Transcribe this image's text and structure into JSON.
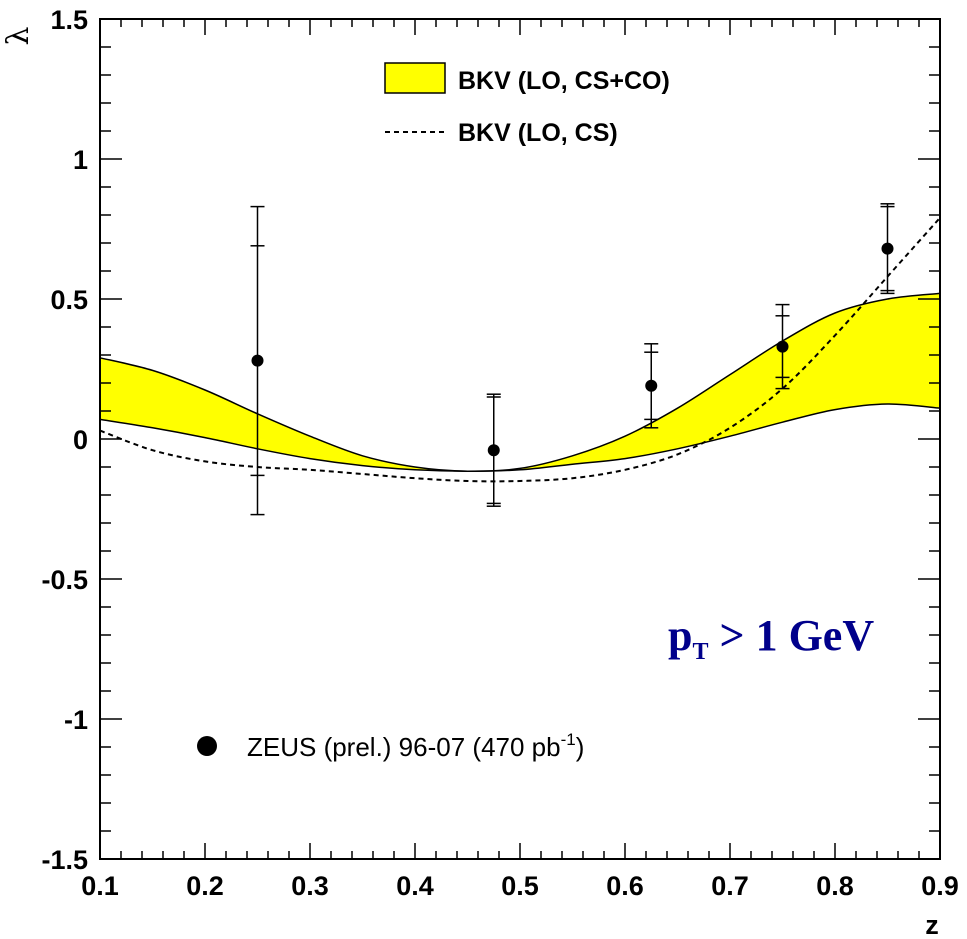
{
  "chart_data": {
    "type": "scatter",
    "title": "",
    "xlabel": "z",
    "ylabel": "λ",
    "xlim": [
      0.1,
      0.9
    ],
    "ylim": [
      -1.5,
      1.5
    ],
    "xticks": [
      "0.1",
      "0.2",
      "0.3",
      "0.4",
      "0.5",
      "0.6",
      "0.7",
      "0.8",
      "0.9"
    ],
    "yticks": [
      "-1.5",
      "-1",
      "-0.5",
      "0",
      "0.5",
      "1",
      "1.5"
    ],
    "grid": false,
    "legend_placement": "top-right",
    "annotation": "p",
    "annotation_sub": "T",
    "annotation_rest": " > 1 GeV",
    "annotation_color": "#00008b",
    "band_color": "#ffff00",
    "series": [
      {
        "name": "BKV (LO, CS+CO)",
        "kind": "band",
        "x": [
          0.1,
          0.15,
          0.2,
          0.25,
          0.3,
          0.35,
          0.4,
          0.45,
          0.5,
          0.55,
          0.6,
          0.65,
          0.7,
          0.75,
          0.8,
          0.85,
          0.9
        ],
        "y_upper": [
          0.29,
          0.245,
          0.175,
          0.09,
          0.01,
          -0.06,
          -0.1,
          -0.115,
          -0.105,
          -0.06,
          0.01,
          0.11,
          0.23,
          0.35,
          0.45,
          0.5,
          0.52
        ],
        "y_lower": [
          0.07,
          0.04,
          0.005,
          -0.035,
          -0.07,
          -0.095,
          -0.11,
          -0.115,
          -0.11,
          -0.09,
          -0.07,
          -0.035,
          0.01,
          0.06,
          0.105,
          0.125,
          0.11
        ]
      },
      {
        "name": "BKV (LO, CS)",
        "kind": "dashed-line",
        "x": [
          0.1,
          0.15,
          0.2,
          0.25,
          0.3,
          0.35,
          0.4,
          0.45,
          0.5,
          0.55,
          0.6,
          0.65,
          0.7,
          0.75,
          0.8,
          0.85,
          0.9
        ],
        "y": [
          0.03,
          -0.04,
          -0.08,
          -0.1,
          -0.11,
          -0.125,
          -0.14,
          -0.15,
          -0.15,
          -0.14,
          -0.11,
          -0.055,
          0.04,
          0.18,
          0.37,
          0.58,
          0.79
        ]
      },
      {
        "name": "ZEUS (prel.) 96-07 (470 pb",
        "name_sup": "-1",
        "name_end": ")",
        "kind": "points",
        "x": [
          0.25,
          0.475,
          0.625,
          0.75,
          0.85
        ],
        "y": [
          0.28,
          -0.04,
          0.19,
          0.33,
          0.68
        ],
        "err_stat": [
          0.41,
          0.19,
          0.12,
          0.11,
          0.15
        ],
        "err_tot": [
          0.55,
          0.2,
          0.15,
          0.15,
          0.16
        ]
      }
    ]
  }
}
